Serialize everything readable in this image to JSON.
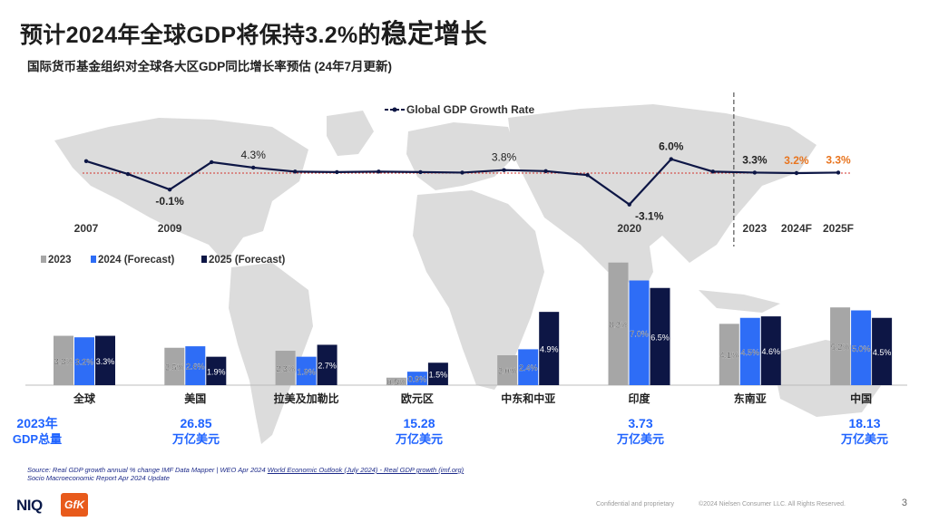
{
  "title": {
    "main": "预计2024年全球GDP将保持3.2%的",
    "emphasis": "稳定增长"
  },
  "subtitle": "国际货币基金组织对全球各大区GDP同比增长率预估 (24年7月更新)",
  "colors": {
    "navy": "#0d1645",
    "blue": "#2e6df6",
    "gray": "#a6a6a6",
    "forecast_orange": "#e8741e",
    "accent_blue": "#1f63ff",
    "ref_line": "#d2332e"
  },
  "chart_data": [
    {
      "type": "line",
      "title": "Global GDP Growth Rate",
      "x": [
        "2007",
        "2008",
        "2009",
        "2010",
        "2011",
        "2012",
        "2013",
        "2014",
        "2015",
        "2016",
        "2017",
        "2018",
        "2019",
        "2020",
        "2021",
        "2022",
        "2023",
        "2024F",
        "2025F"
      ],
      "values": [
        5.6,
        3.0,
        -0.1,
        5.4,
        4.3,
        3.5,
        3.4,
        3.5,
        3.4,
        3.3,
        3.8,
        3.6,
        2.8,
        -3.1,
        6.0,
        3.5,
        3.3,
        3.2,
        3.3
      ],
      "shown_x_labels": [
        "2007",
        "2009",
        "2020",
        "2023",
        "2024F",
        "2025F"
      ],
      "data_labels": [
        {
          "x": "2009",
          "text": "-0.1%"
        },
        {
          "x": "2011",
          "text": "4.3%"
        },
        {
          "x": "2017",
          "text": "3.8%"
        },
        {
          "x": "2020",
          "text": "-3.1%"
        },
        {
          "x": "2021",
          "text": "6.0%"
        },
        {
          "x": "2023",
          "text": "3.3%"
        },
        {
          "x": "2024F",
          "text": "3.2%"
        },
        {
          "x": "2025F",
          "text": "3.3%"
        }
      ],
      "reference_line": 3.2,
      "divider_after": "2022",
      "legend": "Global GDP Growth Rate"
    },
    {
      "type": "bar",
      "categories": [
        "全球",
        "美国",
        "拉美及加勒比",
        "欧元区",
        "中东和中亚",
        "印度",
        "东南亚",
        "中国"
      ],
      "series": [
        {
          "name": "2023",
          "values": [
            3.3,
            2.5,
            2.3,
            0.5,
            2.0,
            8.2,
            4.1,
            5.2
          ]
        },
        {
          "name": "2024 (Forecast)",
          "values": [
            3.2,
            2.6,
            1.9,
            0.9,
            2.4,
            7.0,
            4.5,
            5.0
          ]
        },
        {
          "name": "2025 (Forecast)",
          "values": [
            3.3,
            1.9,
            2.7,
            1.5,
            4.9,
            6.5,
            4.6,
            4.5
          ]
        }
      ],
      "legend": [
        "2023",
        "2024 (Forecast)",
        "2025 (Forecast)"
      ]
    }
  ],
  "gdp_totals": [
    {
      "value": "2023年",
      "unit": "GDP总量"
    },
    {
      "value": "26.85",
      "unit": "万亿美元"
    },
    {
      "value": "15.28",
      "unit": "万亿美元"
    },
    {
      "value": "3.73",
      "unit": "万亿美元"
    },
    {
      "value": "18.13",
      "unit": "万亿美元"
    }
  ],
  "source": {
    "line1_prefix": "Source: Real GDP growth annual % change IMF Data Mapper | WEO Apr 2024 ",
    "line1_link": "World Economic Outlook (July 2024) - Real GDP growth (imf.org)",
    "line2": "Socio Macroeconomic Report Apr 2024 Update"
  },
  "footer": {
    "confidential": "Confidential and proprietary",
    "copyright": "©2024 Nielsen Consumer LLC. All Rights Reserved.",
    "page": "3"
  },
  "logos": {
    "niq": "NIQ",
    "gfk": "GfK"
  }
}
